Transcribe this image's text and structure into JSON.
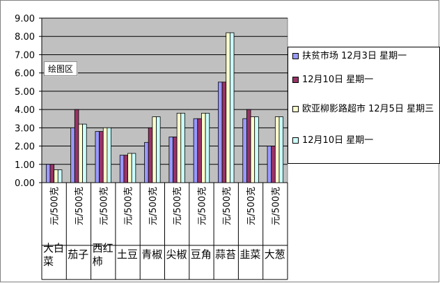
{
  "tooltip": "绘图区",
  "chart_data": {
    "type": "bar",
    "title": "",
    "xlabel": "",
    "ylabel": "",
    "ylim": [
      0,
      9
    ],
    "y_ticks": [
      "0.00",
      "1.00",
      "2.00",
      "3.00",
      "4.00",
      "5.00",
      "6.00",
      "7.00",
      "8.00",
      "9.00"
    ],
    "grid": true,
    "legend_position": "right",
    "categories": [
      "大白菜",
      "茄子",
      "西红柿",
      "土豆",
      "青椒",
      "尖椒",
      "豆角",
      "蒜苔",
      "韭菜",
      "大葱"
    ],
    "unit_label": "元/500克",
    "series": [
      {
        "name": "扶贫市场 12月3日 星期一",
        "color": "#9999ff",
        "values": [
          1.0,
          3.0,
          2.8,
          1.5,
          2.2,
          2.5,
          3.5,
          5.5,
          3.5,
          2.0
        ]
      },
      {
        "name": "12月10日 星期一",
        "color": "#993366",
        "values": [
          1.0,
          4.0,
          2.8,
          1.5,
          3.0,
          2.5,
          3.5,
          5.5,
          4.0,
          2.0
        ]
      },
      {
        "name": "欧亚柳影路超市 12月5日 星期三",
        "color": "#ffffcc",
        "values": [
          0.7,
          3.2,
          3.0,
          1.6,
          3.6,
          3.8,
          3.8,
          8.2,
          3.6,
          3.6
        ]
      },
      {
        "name": "12月10日 星期一",
        "color": "#ccffff",
        "values": [
          0.7,
          3.2,
          3.0,
          1.6,
          3.6,
          3.8,
          3.8,
          8.2,
          3.6,
          3.6
        ]
      }
    ],
    "plot_color": "#c0c0c0"
  }
}
